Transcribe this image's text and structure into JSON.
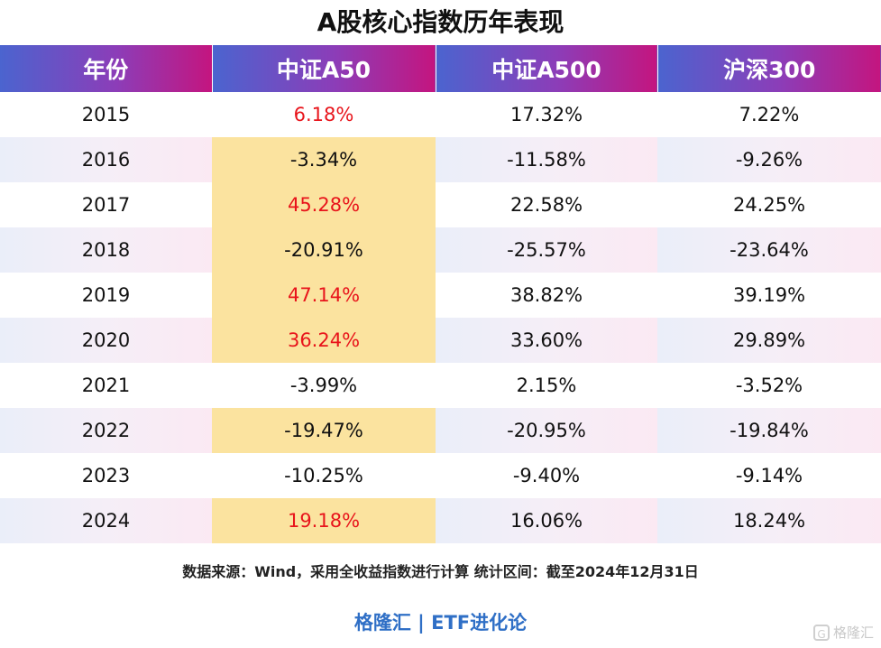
{
  "title": "A股核心指数历年表现",
  "table": {
    "headers": [
      "年份",
      "中证A50",
      "中证A500",
      "沪深300"
    ],
    "rows": [
      {
        "year": "2015",
        "a50": "6.18%",
        "a500": "17.32%",
        "hs300": "7.22%",
        "a50_highlight": false,
        "a50_red": true
      },
      {
        "year": "2016",
        "a50": "-3.34%",
        "a500": "-11.58%",
        "hs300": "-9.26%",
        "a50_highlight": true,
        "a50_red": false
      },
      {
        "year": "2017",
        "a50": "45.28%",
        "a500": "22.58%",
        "hs300": "24.25%",
        "a50_highlight": true,
        "a50_red": true
      },
      {
        "year": "2018",
        "a50": "-20.91%",
        "a500": "-25.57%",
        "hs300": "-23.64%",
        "a50_highlight": true,
        "a50_red": false
      },
      {
        "year": "2019",
        "a50": "47.14%",
        "a500": "38.82%",
        "hs300": "39.19%",
        "a50_highlight": true,
        "a50_red": true
      },
      {
        "year": "2020",
        "a50": "36.24%",
        "a500": "33.60%",
        "hs300": "29.89%",
        "a50_highlight": true,
        "a50_red": true
      },
      {
        "year": "2021",
        "a50": "-3.99%",
        "a500": "2.15%",
        "hs300": "-3.52%",
        "a50_highlight": false,
        "a50_red": false
      },
      {
        "year": "2022",
        "a50": "-19.47%",
        "a500": "-20.95%",
        "hs300": "-19.84%",
        "a50_highlight": true,
        "a50_red": false
      },
      {
        "year": "2023",
        "a50": "-10.25%",
        "a500": "-9.40%",
        "hs300": "-9.14%",
        "a50_highlight": false,
        "a50_red": false
      },
      {
        "year": "2024",
        "a50": "19.18%",
        "a500": "16.06%",
        "hs300": "18.24%",
        "a50_highlight": true,
        "a50_red": true
      }
    ]
  },
  "source": "数据来源：Wind，采用全收益指数进行计算 统计区间：截至2024年12月31日",
  "footer": "格隆汇 | ETF进化论",
  "watermark": {
    "icon": "G",
    "text": "格隆汇"
  },
  "colors": {
    "highlight": "#fbe39f",
    "positive_text": "#e8141b",
    "header_gradient_start": "#4b64cf",
    "header_gradient_end": "#c4157f",
    "footer_text": "#2f6fc6"
  }
}
